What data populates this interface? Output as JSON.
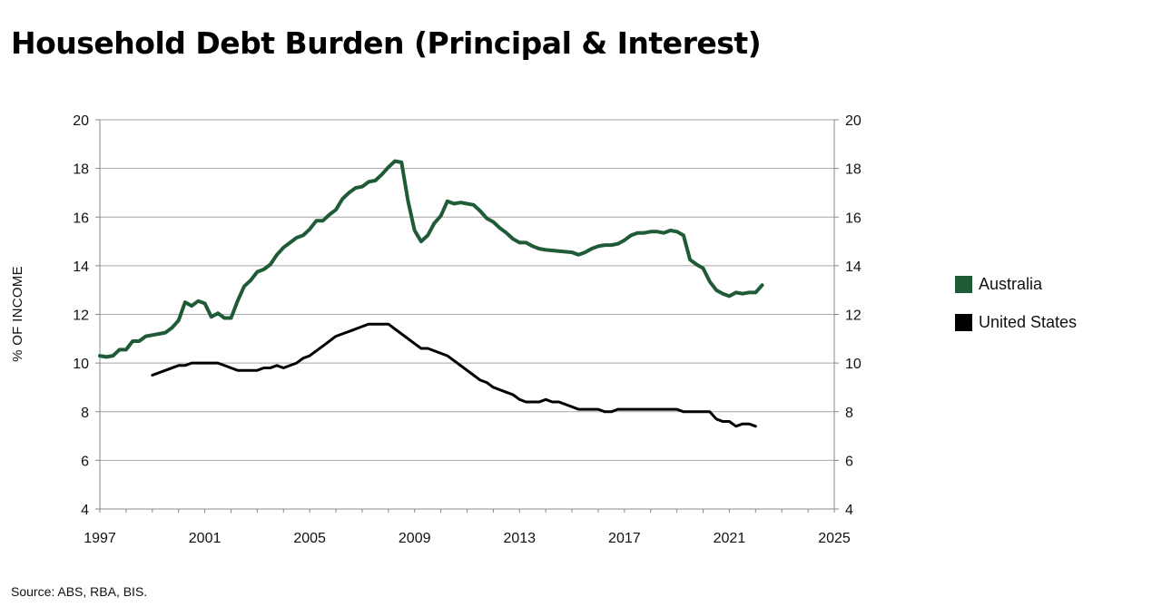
{
  "title": "Household Debt Burden (Principal & Interest)",
  "source": "Source: ABS, RBA, BIS.",
  "colors": {
    "australia": "#1f5b37",
    "united_states": "#000000",
    "grid": "#a6a6a6",
    "axis": "#888888"
  },
  "chart_data": {
    "type": "line",
    "title": "Household Debt Burden (Principal & Interest)",
    "ylabel": "% OF INCOME",
    "xlabel": "",
    "xlim": [
      1997,
      2025
    ],
    "ylim": [
      4,
      20
    ],
    "x_ticks": [
      1997,
      2001,
      2005,
      2009,
      2013,
      2017,
      2021,
      2025
    ],
    "y_ticks": [
      4,
      6,
      8,
      10,
      12,
      14,
      16,
      18,
      20
    ],
    "y_ticks_right": [
      4,
      6,
      8,
      10,
      12,
      14,
      16,
      18,
      20
    ],
    "grid": "horizontal",
    "legend_position": "right",
    "series": [
      {
        "name": "Australia",
        "color": "#1f5b37",
        "points": [
          [
            1997.0,
            10.3
          ],
          [
            1997.25,
            10.25
          ],
          [
            1997.5,
            10.3
          ],
          [
            1997.75,
            10.55
          ],
          [
            1998.0,
            10.55
          ],
          [
            1998.25,
            10.9
          ],
          [
            1998.5,
            10.9
          ],
          [
            1998.75,
            11.1
          ],
          [
            1999.0,
            11.15
          ],
          [
            1999.25,
            11.2
          ],
          [
            1999.5,
            11.25
          ],
          [
            1999.75,
            11.45
          ],
          [
            2000.0,
            11.75
          ],
          [
            2000.25,
            12.5
          ],
          [
            2000.5,
            12.35
          ],
          [
            2000.75,
            12.55
          ],
          [
            2001.0,
            12.45
          ],
          [
            2001.25,
            11.9
          ],
          [
            2001.5,
            12.05
          ],
          [
            2001.75,
            11.85
          ],
          [
            2002.0,
            11.85
          ],
          [
            2002.25,
            12.55
          ],
          [
            2002.5,
            13.15
          ],
          [
            2002.75,
            13.4
          ],
          [
            2003.0,
            13.75
          ],
          [
            2003.25,
            13.85
          ],
          [
            2003.5,
            14.05
          ],
          [
            2003.75,
            14.45
          ],
          [
            2004.0,
            14.75
          ],
          [
            2004.25,
            14.95
          ],
          [
            2004.5,
            15.15
          ],
          [
            2004.75,
            15.25
          ],
          [
            2005.0,
            15.5
          ],
          [
            2005.25,
            15.85
          ],
          [
            2005.5,
            15.85
          ],
          [
            2005.75,
            16.1
          ],
          [
            2006.0,
            16.3
          ],
          [
            2006.25,
            16.75
          ],
          [
            2006.5,
            17.0
          ],
          [
            2006.75,
            17.2
          ],
          [
            2007.0,
            17.25
          ],
          [
            2007.25,
            17.45
          ],
          [
            2007.5,
            17.5
          ],
          [
            2007.75,
            17.75
          ],
          [
            2008.0,
            18.05
          ],
          [
            2008.25,
            18.3
          ],
          [
            2008.5,
            18.25
          ],
          [
            2008.75,
            16.65
          ],
          [
            2009.0,
            15.45
          ],
          [
            2009.25,
            15.0
          ],
          [
            2009.5,
            15.25
          ],
          [
            2009.75,
            15.75
          ],
          [
            2010.0,
            16.05
          ],
          [
            2010.25,
            16.65
          ],
          [
            2010.5,
            16.55
          ],
          [
            2010.75,
            16.6
          ],
          [
            2011.0,
            16.55
          ],
          [
            2011.25,
            16.5
          ],
          [
            2011.5,
            16.25
          ],
          [
            2011.75,
            15.95
          ],
          [
            2012.0,
            15.8
          ],
          [
            2012.25,
            15.55
          ],
          [
            2012.5,
            15.35
          ],
          [
            2012.75,
            15.1
          ],
          [
            2013.0,
            14.95
          ],
          [
            2013.25,
            14.95
          ],
          [
            2013.5,
            14.8
          ],
          [
            2013.75,
            14.7
          ],
          [
            2014.0,
            14.65
          ],
          [
            2014.5,
            14.6
          ],
          [
            2015.0,
            14.55
          ],
          [
            2015.25,
            14.45
          ],
          [
            2015.5,
            14.55
          ],
          [
            2015.75,
            14.7
          ],
          [
            2016.0,
            14.8
          ],
          [
            2016.25,
            14.85
          ],
          [
            2016.5,
            14.85
          ],
          [
            2016.75,
            14.9
          ],
          [
            2017.0,
            15.05
          ],
          [
            2017.25,
            15.25
          ],
          [
            2017.5,
            15.35
          ],
          [
            2017.75,
            15.35
          ],
          [
            2018.0,
            15.4
          ],
          [
            2018.25,
            15.4
          ],
          [
            2018.5,
            15.35
          ],
          [
            2018.75,
            15.45
          ],
          [
            2019.0,
            15.4
          ],
          [
            2019.25,
            15.25
          ],
          [
            2019.5,
            14.25
          ],
          [
            2019.75,
            14.05
          ],
          [
            2020.0,
            13.9
          ],
          [
            2020.25,
            13.35
          ],
          [
            2020.5,
            13.0
          ],
          [
            2020.75,
            12.85
          ],
          [
            2021.0,
            12.75
          ],
          [
            2021.25,
            12.9
          ],
          [
            2021.5,
            12.85
          ],
          [
            2021.75,
            12.9
          ],
          [
            2022.0,
            12.9
          ],
          [
            2022.25,
            13.2
          ]
        ]
      },
      {
        "name": "United States",
        "color": "#000000",
        "points": [
          [
            1999.0,
            9.5
          ],
          [
            1999.5,
            9.7
          ],
          [
            2000.0,
            9.9
          ],
          [
            2000.25,
            9.9
          ],
          [
            2000.5,
            10.0
          ],
          [
            2001.0,
            10.0
          ],
          [
            2001.5,
            10.0
          ],
          [
            2002.0,
            9.8
          ],
          [
            2002.25,
            9.7
          ],
          [
            2002.5,
            9.7
          ],
          [
            2003.0,
            9.7
          ],
          [
            2003.25,
            9.8
          ],
          [
            2003.5,
            9.8
          ],
          [
            2003.75,
            9.9
          ],
          [
            2004.0,
            9.8
          ],
          [
            2004.5,
            10.0
          ],
          [
            2004.75,
            10.2
          ],
          [
            2005.0,
            10.3
          ],
          [
            2005.5,
            10.7
          ],
          [
            2006.0,
            11.1
          ],
          [
            2006.5,
            11.3
          ],
          [
            2007.0,
            11.5
          ],
          [
            2007.25,
            11.6
          ],
          [
            2007.75,
            11.6
          ],
          [
            2008.0,
            11.6
          ],
          [
            2008.5,
            11.2
          ],
          [
            2009.0,
            10.8
          ],
          [
            2009.25,
            10.6
          ],
          [
            2009.5,
            10.6
          ],
          [
            2010.0,
            10.4
          ],
          [
            2010.25,
            10.3
          ],
          [
            2010.75,
            9.9
          ],
          [
            2011.25,
            9.5
          ],
          [
            2011.5,
            9.3
          ],
          [
            2011.75,
            9.2
          ],
          [
            2012.0,
            9.0
          ],
          [
            2012.5,
            8.8
          ],
          [
            2012.75,
            8.7
          ],
          [
            2013.0,
            8.5
          ],
          [
            2013.25,
            8.4
          ],
          [
            2013.75,
            8.4
          ],
          [
            2014.0,
            8.5
          ],
          [
            2014.25,
            8.4
          ],
          [
            2014.5,
            8.4
          ],
          [
            2015.0,
            8.2
          ],
          [
            2015.25,
            8.1
          ],
          [
            2015.75,
            8.1
          ],
          [
            2016.0,
            8.1
          ],
          [
            2016.25,
            8.0
          ],
          [
            2016.5,
            8.0
          ],
          [
            2016.75,
            8.1
          ],
          [
            2017.0,
            8.1
          ],
          [
            2018.0,
            8.1
          ],
          [
            2019.0,
            8.1
          ],
          [
            2019.25,
            8.0
          ],
          [
            2020.25,
            8.0
          ],
          [
            2020.5,
            7.7
          ],
          [
            2020.75,
            7.6
          ],
          [
            2021.0,
            7.6
          ],
          [
            2021.25,
            7.4
          ],
          [
            2021.5,
            7.5
          ],
          [
            2021.75,
            7.5
          ],
          [
            2022.0,
            7.4
          ]
        ]
      }
    ]
  }
}
